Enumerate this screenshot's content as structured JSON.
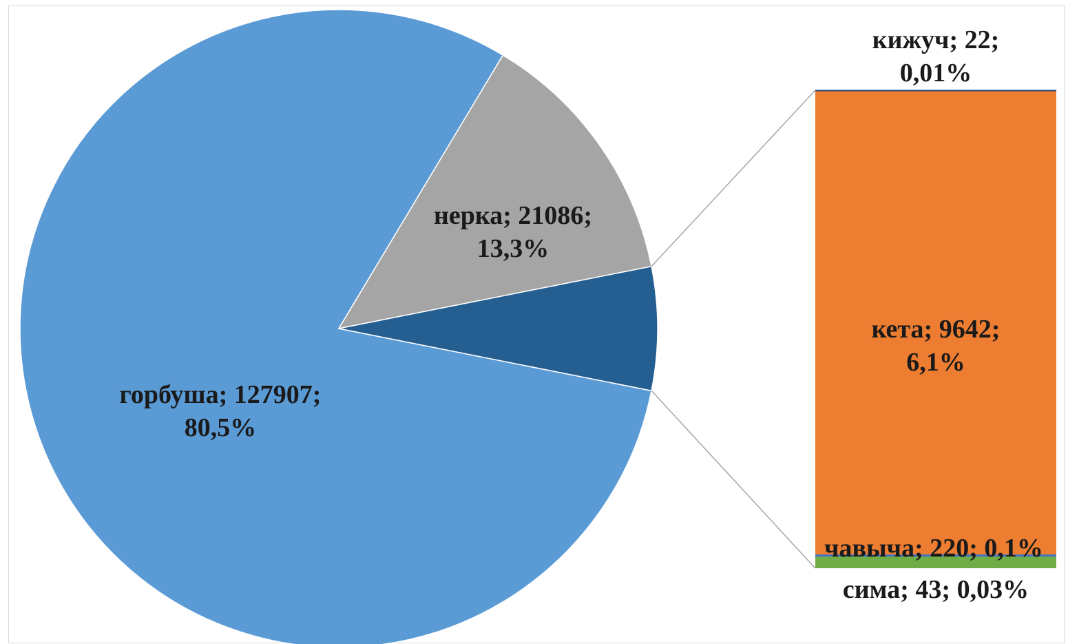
{
  "chart_data": {
    "type": "pie-of-bar",
    "title": "",
    "colors": {
      "горбуша": "#5b9bd5",
      "нерка": "#a5a5a5",
      "другие": "#255e91",
      "кета": "#ed7d31",
      "чавыча": "#4472c4",
      "сима": "#70ad47",
      "кижуч": "#264478"
    },
    "pie": [
      {
        "name": "горбуша",
        "value": 127907,
        "percent": "80,5%",
        "label_line1": "горбуша; 127907;",
        "label_line2": "80,5%"
      },
      {
        "name": "нерка",
        "value": 21086,
        "percent": "13,3%",
        "label_line1": "нерка; 21086;",
        "label_line2": "13,3%"
      },
      {
        "name": "другие",
        "value": 9927,
        "percent": "",
        "label_line1": "",
        "label_line2": ""
      }
    ],
    "bar": [
      {
        "name": "кета",
        "value": 9642,
        "percent": "6,1%",
        "label_line1": "кета; 9642;",
        "label_line2": "6,1%"
      },
      {
        "name": "чавыча",
        "value": 220,
        "percent": "0,1%",
        "label_line1": "чавыча; 220; 0,1%",
        "label_line2": ""
      },
      {
        "name": "сима",
        "value": 43,
        "percent": "0,03%",
        "label_line1": "сима; 43; 0,03%",
        "label_line2": ""
      },
      {
        "name": "кижуч",
        "value": 22,
        "percent": "0,01%",
        "label_line1": "кижуч; 22;",
        "label_line2": "0,01%"
      }
    ]
  }
}
